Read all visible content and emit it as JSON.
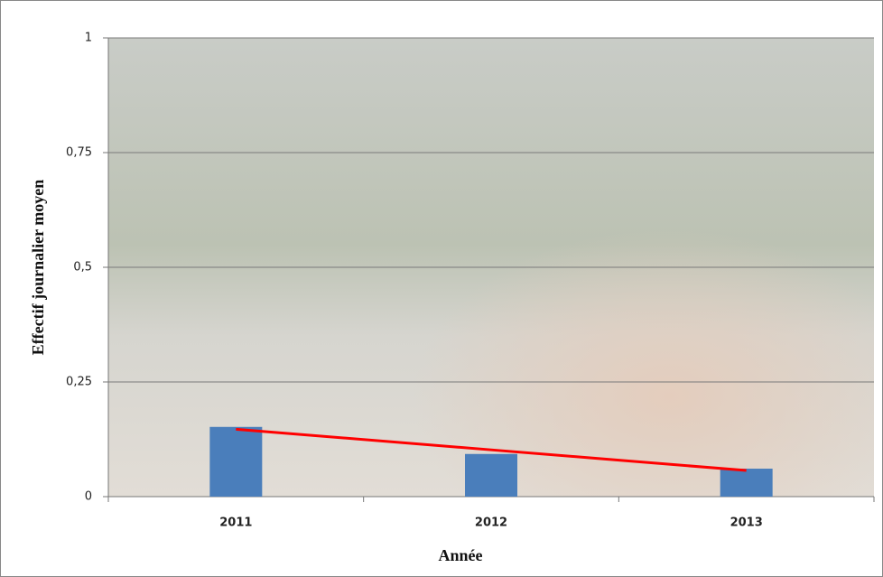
{
  "chart_data": {
    "type": "bar",
    "x_label": "Année",
    "y_label": "Effectif journalier moyen",
    "categories": [
      "2011",
      "2012",
      "2013"
    ],
    "values": [
      0.152,
      0.093,
      0.061
    ],
    "color": "#4a7ebb",
    "trendline": {
      "color": "#ff0000",
      "values": [
        0.147,
        0.102,
        0.057
      ]
    },
    "ylim": [
      0,
      1
    ],
    "yticks": [
      0,
      {
        "value": 0.25,
        "label": "0,25"
      },
      {
        "value": 0.5,
        "label": "0,5"
      },
      {
        "value": 0.75,
        "label": "0,75"
      },
      1
    ],
    "grid": true
  }
}
